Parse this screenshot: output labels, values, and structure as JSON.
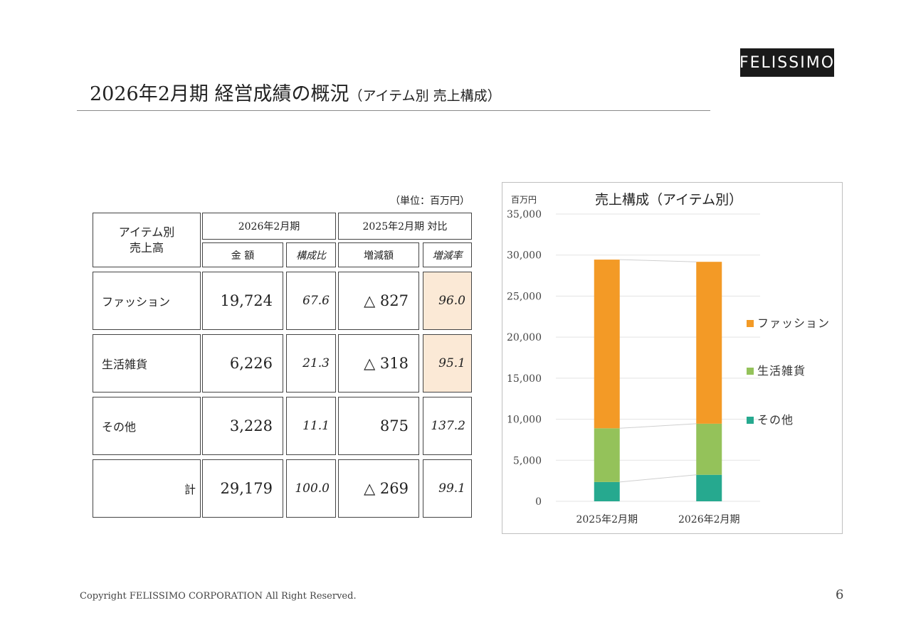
{
  "logo": {
    "text": "FELISSIMO"
  },
  "title": {
    "main": "2026年2月期 経営成績の概況",
    "sub": "（アイテム別 売上構成）"
  },
  "table": {
    "unit": "（単位：百万円）",
    "header_item": [
      "アイテム別",
      "売上高"
    ],
    "header_current": "2026年2月期",
    "header_compare": "2025年2月期 対比",
    "col_amount": "金 額",
    "col_ratio": "構成比",
    "col_diff": "増減額",
    "col_rate": "増減率",
    "rows": [
      {
        "label": "ファッション",
        "amount": "19,724",
        "ratio": "67.6",
        "diff": "△ 827",
        "rate": "96.0"
      },
      {
        "label": "生活雑貨",
        "amount": "6,226",
        "ratio": "21.3",
        "diff": "△ 318",
        "rate": "95.1"
      },
      {
        "label": "その他",
        "amount": "3,228",
        "ratio": "11.1",
        "diff": "875",
        "rate": "137.2"
      },
      {
        "label": "計",
        "amount": "29,179",
        "ratio": "100.0",
        "diff": "△ 269",
        "rate": "99.1"
      }
    ],
    "highlight_color": "#fbe9d6"
  },
  "chart_data": {
    "type": "bar",
    "stacked": true,
    "title": "売上構成（アイテム別）",
    "ylabel": "百万円",
    "ylim": [
      0,
      35000
    ],
    "yticks": [
      0,
      5000,
      10000,
      15000,
      20000,
      25000,
      30000,
      35000
    ],
    "ytick_labels": [
      "0",
      "5,000",
      "10,000",
      "15,000",
      "20,000",
      "25,000",
      "30,000",
      "35,000"
    ],
    "categories": [
      "2025年2月期",
      "2026年2月期"
    ],
    "series": [
      {
        "name": "その他",
        "values": [
          2353,
          3228
        ],
        "color": "#26a98f"
      },
      {
        "name": "生活雑貨",
        "values": [
          6544,
          6226
        ],
        "color": "#94c25a"
      },
      {
        "name": "ファッション",
        "values": [
          20551,
          19724
        ],
        "color": "#f39a26"
      }
    ],
    "legend": [
      "ファッション",
      "生活雑貨",
      "その他"
    ],
    "legend_position": "right",
    "grid": true
  },
  "footer": {
    "copyright": "Copyright FELISSIMO CORPORATION All Right Reserved.",
    "page": "6"
  }
}
